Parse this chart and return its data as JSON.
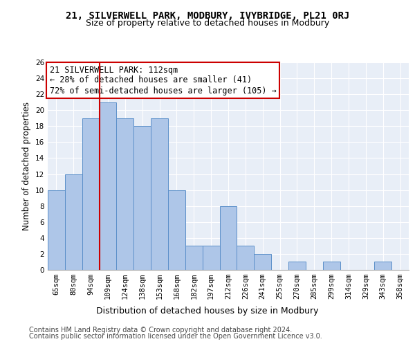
{
  "title1": "21, SILVERWELL PARK, MODBURY, IVYBRIDGE, PL21 0RJ",
  "title2": "Size of property relative to detached houses in Modbury",
  "xlabel": "Distribution of detached houses by size in Modbury",
  "ylabel": "Number of detached properties",
  "categories": [
    "65sqm",
    "80sqm",
    "94sqm",
    "109sqm",
    "124sqm",
    "138sqm",
    "153sqm",
    "168sqm",
    "182sqm",
    "197sqm",
    "212sqm",
    "226sqm",
    "241sqm",
    "255sqm",
    "270sqm",
    "285sqm",
    "299sqm",
    "314sqm",
    "329sqm",
    "343sqm",
    "358sqm"
  ],
  "values": [
    10,
    12,
    19,
    21,
    19,
    18,
    19,
    10,
    3,
    3,
    8,
    3,
    2,
    0,
    1,
    0,
    1,
    0,
    0,
    1,
    0
  ],
  "bar_color": "#aec6e8",
  "bar_edge_color": "#5b8fc9",
  "background_color": "#e8eef7",
  "grid_color": "#ffffff",
  "vline_color": "#cc0000",
  "annotation_box_color": "#cc0000",
  "ylim": [
    0,
    26
  ],
  "yticks": [
    0,
    2,
    4,
    6,
    8,
    10,
    12,
    14,
    16,
    18,
    20,
    22,
    24,
    26
  ],
  "footer_line1": "Contains HM Land Registry data © Crown copyright and database right 2024.",
  "footer_line2": "Contains public sector information licensed under the Open Government Licence v3.0.",
  "title1_fontsize": 10,
  "title2_fontsize": 9,
  "xlabel_fontsize": 9,
  "ylabel_fontsize": 8.5,
  "tick_fontsize": 7.5,
  "annotation_fontsize": 8.5,
  "footer_fontsize": 7
}
